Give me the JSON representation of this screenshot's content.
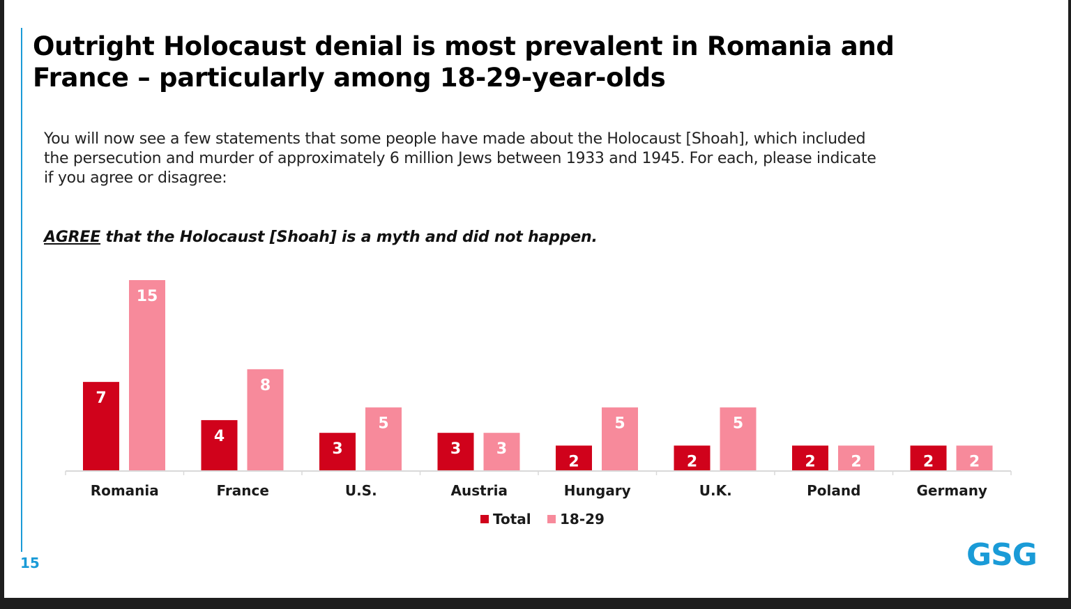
{
  "slide": {
    "title_lines": [
      "Outright Holocaust denial is most prevalent in Romania and",
      "France – particularly among 18-29-year-olds"
    ],
    "question_lines": [
      "You will now see a few statements that some people have made about the Holocaust [Shoah], which included",
      "the persecution and murder of approximately 6 million Jews between 1933 and 1945. For each, please indicate",
      "if you agree or disagree:"
    ],
    "statement_keyword": "AGREE",
    "statement_rest": " that the Holocaust [Shoah] is a myth and did not happen.",
    "page_number": "15",
    "logo": "GSG"
  },
  "colors": {
    "total": "#d0021b",
    "age_18_29": "#f78a9b",
    "accent": "#1a9bd7"
  },
  "chart_data": {
    "type": "bar",
    "categories": [
      "Romania",
      "France",
      "U.S.",
      "Austria",
      "Hungary",
      "U.K.",
      "Poland",
      "Germany"
    ],
    "series": [
      {
        "name": "Total",
        "values": [
          7,
          4,
          3,
          3,
          2,
          2,
          2,
          2
        ]
      },
      {
        "name": "18-29",
        "values": [
          15,
          8,
          5,
          3,
          5,
          5,
          2,
          2
        ]
      }
    ],
    "ylim": [
      0,
      15
    ],
    "grid": false,
    "legend": "bottom-center",
    "data_labels": true
  }
}
